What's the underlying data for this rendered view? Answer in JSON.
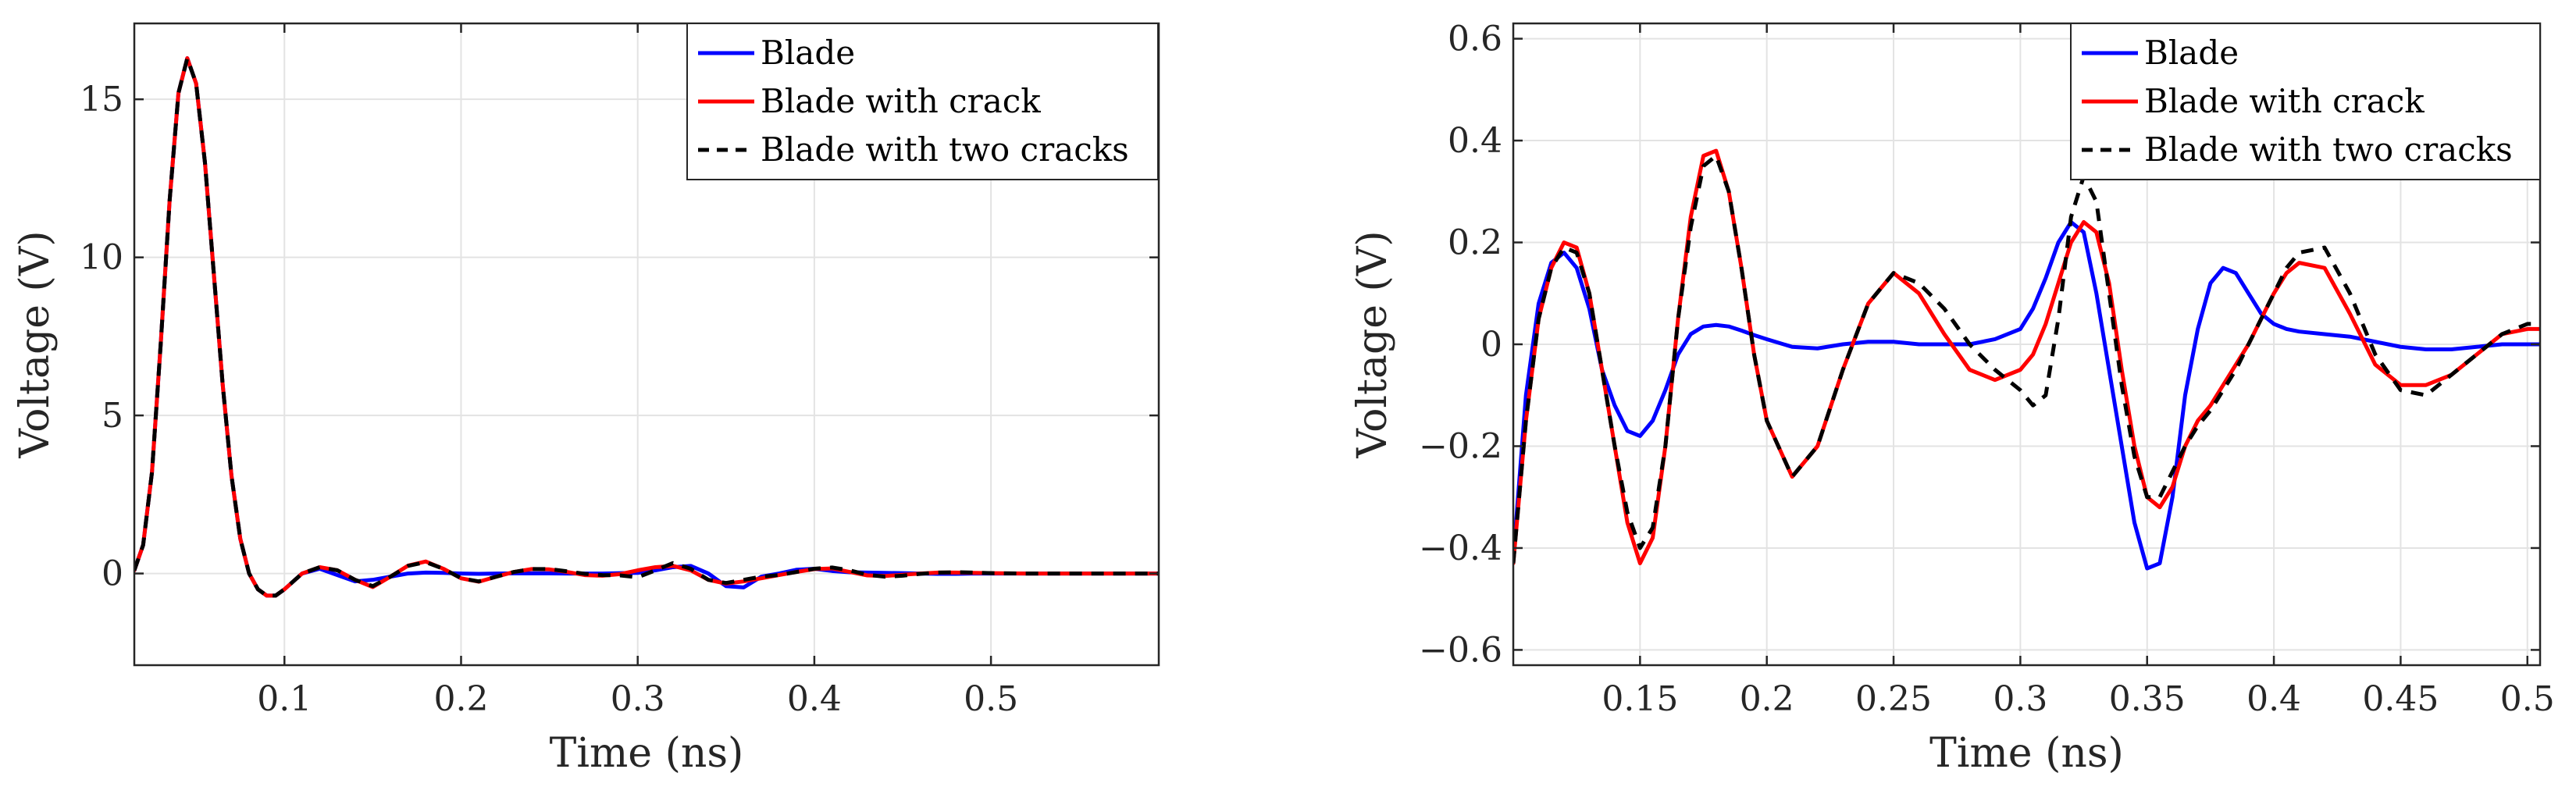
{
  "figure": {
    "panels": 2
  },
  "chart_data": [
    {
      "type": "line",
      "title": "",
      "xlabel": "Time (ns)",
      "ylabel": "Voltage (V)",
      "xlim": [
        0.015,
        0.595
      ],
      "ylim": [
        -2.9,
        17.4
      ],
      "xticks": [
        0.1,
        0.2,
        0.3,
        0.4,
        0.5
      ],
      "xtick_labels": [
        "0.1",
        "0.2",
        "0.3",
        "0.4",
        "0.5"
      ],
      "yticks": [
        0,
        5,
        10,
        15
      ],
      "ytick_labels": [
        "0",
        "5",
        "10",
        "15"
      ],
      "grid": true,
      "legend_position": "top-right",
      "series": [
        {
          "name": "Blade",
          "color": "#0000ff",
          "style": "solid",
          "x": [
            0.015,
            0.02,
            0.025,
            0.03,
            0.035,
            0.04,
            0.045,
            0.05,
            0.055,
            0.06,
            0.065,
            0.07,
            0.075,
            0.08,
            0.085,
            0.09,
            0.095,
            0.1,
            0.11,
            0.12,
            0.13,
            0.14,
            0.15,
            0.16,
            0.17,
            0.18,
            0.19,
            0.2,
            0.21,
            0.22,
            0.23,
            0.24,
            0.25,
            0.26,
            0.27,
            0.28,
            0.29,
            0.3,
            0.31,
            0.32,
            0.33,
            0.34,
            0.35,
            0.36,
            0.37,
            0.38,
            0.39,
            0.4,
            0.41,
            0.42,
            0.43,
            0.44,
            0.45,
            0.46,
            0.47,
            0.48,
            0.49,
            0.5,
            0.52,
            0.54,
            0.56,
            0.58,
            0.595
          ],
          "y": [
            0.1,
            0.9,
            3.2,
            7.3,
            11.8,
            15.2,
            16.3,
            15.5,
            13.0,
            9.5,
            6.0,
            3.1,
            1.1,
            0.0,
            -0.5,
            -0.7,
            -0.7,
            -0.5,
            0.0,
            0.15,
            -0.05,
            -0.25,
            -0.2,
            -0.1,
            0.0,
            0.03,
            0.02,
            0.0,
            -0.01,
            0.0,
            0.005,
            0.005,
            0.005,
            0.0,
            0.0,
            0.0,
            0.01,
            0.02,
            0.1,
            0.2,
            0.24,
            0.0,
            -0.4,
            -0.44,
            -0.1,
            0.0,
            0.12,
            0.15,
            0.08,
            0.04,
            0.03,
            0.02,
            0.01,
            0.0,
            -0.01,
            -0.01,
            0.0,
            0.0,
            0.0,
            0.0,
            0.0,
            0.0,
            0.0
          ]
        },
        {
          "name": "Blade with crack",
          "color": "#ff0000",
          "style": "solid",
          "x": [
            0.015,
            0.02,
            0.025,
            0.03,
            0.035,
            0.04,
            0.045,
            0.05,
            0.055,
            0.06,
            0.065,
            0.07,
            0.075,
            0.08,
            0.085,
            0.09,
            0.095,
            0.1,
            0.11,
            0.12,
            0.13,
            0.14,
            0.15,
            0.16,
            0.17,
            0.18,
            0.19,
            0.2,
            0.21,
            0.22,
            0.23,
            0.24,
            0.25,
            0.26,
            0.27,
            0.28,
            0.29,
            0.3,
            0.31,
            0.32,
            0.33,
            0.34,
            0.35,
            0.36,
            0.37,
            0.38,
            0.39,
            0.4,
            0.41,
            0.42,
            0.43,
            0.44,
            0.45,
            0.46,
            0.47,
            0.48,
            0.49,
            0.5,
            0.52,
            0.54,
            0.56,
            0.58,
            0.595
          ],
          "y": [
            0.1,
            0.9,
            3.2,
            7.3,
            11.8,
            15.2,
            16.3,
            15.5,
            13.0,
            9.5,
            6.0,
            3.1,
            1.1,
            0.0,
            -0.5,
            -0.7,
            -0.7,
            -0.5,
            0.0,
            0.2,
            0.1,
            -0.2,
            -0.43,
            -0.1,
            0.25,
            0.38,
            0.15,
            -0.15,
            -0.26,
            -0.1,
            0.05,
            0.14,
            0.13,
            0.05,
            -0.05,
            -0.07,
            -0.02,
            0.1,
            0.2,
            0.24,
            0.1,
            -0.2,
            -0.32,
            -0.25,
            -0.15,
            -0.05,
            0.05,
            0.14,
            0.16,
            0.05,
            -0.06,
            -0.08,
            -0.04,
            0.0,
            0.03,
            0.03,
            0.02,
            0.01,
            0.0,
            0.0,
            0.0,
            0.0,
            0.0
          ]
        },
        {
          "name": "Blade with two cracks",
          "color": "#000000",
          "style": "dashed",
          "x": [
            0.015,
            0.02,
            0.025,
            0.03,
            0.035,
            0.04,
            0.045,
            0.05,
            0.055,
            0.06,
            0.065,
            0.07,
            0.075,
            0.08,
            0.085,
            0.09,
            0.095,
            0.1,
            0.11,
            0.12,
            0.13,
            0.14,
            0.15,
            0.16,
            0.17,
            0.18,
            0.19,
            0.2,
            0.21,
            0.22,
            0.23,
            0.24,
            0.25,
            0.26,
            0.27,
            0.28,
            0.29,
            0.3,
            0.31,
            0.32,
            0.33,
            0.34,
            0.35,
            0.36,
            0.37,
            0.38,
            0.39,
            0.4,
            0.41,
            0.42,
            0.43,
            0.44,
            0.45,
            0.46,
            0.47,
            0.48,
            0.49,
            0.5,
            0.52,
            0.54,
            0.56,
            0.58,
            0.595
          ],
          "y": [
            0.1,
            0.9,
            3.2,
            7.3,
            11.8,
            15.2,
            16.3,
            15.5,
            13.0,
            9.5,
            6.0,
            3.1,
            1.1,
            0.0,
            -0.5,
            -0.7,
            -0.7,
            -0.5,
            0.0,
            0.2,
            0.1,
            -0.2,
            -0.4,
            -0.1,
            0.24,
            0.36,
            0.15,
            -0.15,
            -0.25,
            -0.1,
            0.05,
            0.14,
            0.14,
            0.07,
            -0.01,
            -0.05,
            -0.06,
            -0.12,
            0.1,
            0.33,
            0.15,
            -0.2,
            -0.3,
            -0.2,
            -0.1,
            -0.05,
            0.05,
            0.15,
            0.19,
            0.1,
            -0.04,
            -0.1,
            -0.07,
            -0.01,
            0.03,
            0.04,
            0.03,
            0.01,
            0.0,
            0.0,
            0.0,
            0.0,
            0.0
          ]
        }
      ]
    },
    {
      "type": "line",
      "title": "",
      "xlabel": "Time (ns)",
      "ylabel": "Voltage (V)",
      "xlim": [
        0.1,
        0.505
      ],
      "ylim": [
        -0.63,
        0.63
      ],
      "xticks": [
        0.15,
        0.2,
        0.25,
        0.3,
        0.35,
        0.4,
        0.45,
        0.5
      ],
      "xtick_labels": [
        "0.15",
        "0.2",
        "0.25",
        "0.3",
        "0.35",
        "0.4",
        "0.45",
        "0.5"
      ],
      "yticks": [
        -0.6,
        -0.4,
        -0.2,
        0,
        0.2,
        0.4,
        0.6
      ],
      "ytick_labels": [
        "−0.6",
        "−0.4",
        "−0.2",
        "0",
        "0.2",
        "0.4",
        "0.6"
      ],
      "grid": true,
      "legend_position": "top-right",
      "series": [
        {
          "name": "Blade",
          "color": "#0000ff",
          "style": "solid",
          "x": [
            0.1,
            0.105,
            0.11,
            0.115,
            0.12,
            0.125,
            0.13,
            0.135,
            0.14,
            0.145,
            0.15,
            0.155,
            0.16,
            0.165,
            0.17,
            0.175,
            0.18,
            0.185,
            0.19,
            0.195,
            0.2,
            0.21,
            0.22,
            0.23,
            0.24,
            0.25,
            0.26,
            0.27,
            0.28,
            0.29,
            0.3,
            0.305,
            0.31,
            0.315,
            0.32,
            0.325,
            0.33,
            0.335,
            0.34,
            0.345,
            0.35,
            0.355,
            0.36,
            0.365,
            0.37,
            0.375,
            0.38,
            0.385,
            0.39,
            0.395,
            0.4,
            0.405,
            0.41,
            0.42,
            0.43,
            0.44,
            0.45,
            0.46,
            0.47,
            0.48,
            0.49,
            0.5,
            0.505
          ],
          "y": [
            -0.42,
            -0.1,
            0.08,
            0.16,
            0.18,
            0.15,
            0.07,
            -0.05,
            -0.12,
            -0.17,
            -0.18,
            -0.15,
            -0.09,
            -0.02,
            0.02,
            0.035,
            0.038,
            0.035,
            0.027,
            0.018,
            0.01,
            -0.005,
            -0.008,
            0.0,
            0.005,
            0.005,
            0.0,
            0.0,
            0.0,
            0.01,
            0.03,
            0.07,
            0.13,
            0.2,
            0.24,
            0.22,
            0.1,
            -0.05,
            -0.2,
            -0.35,
            -0.44,
            -0.43,
            -0.3,
            -0.1,
            0.03,
            0.12,
            0.15,
            0.14,
            0.1,
            0.06,
            0.04,
            0.03,
            0.025,
            0.02,
            0.015,
            0.005,
            -0.005,
            -0.01,
            -0.01,
            -0.005,
            0.0,
            0.0,
            0.0
          ]
        },
        {
          "name": "Blade with crack",
          "color": "#ff0000",
          "style": "solid",
          "x": [
            0.1,
            0.105,
            0.11,
            0.115,
            0.12,
            0.125,
            0.13,
            0.135,
            0.14,
            0.145,
            0.15,
            0.155,
            0.16,
            0.165,
            0.17,
            0.175,
            0.18,
            0.185,
            0.19,
            0.195,
            0.2,
            0.21,
            0.22,
            0.23,
            0.24,
            0.25,
            0.26,
            0.27,
            0.28,
            0.29,
            0.3,
            0.305,
            0.31,
            0.315,
            0.32,
            0.325,
            0.33,
            0.335,
            0.34,
            0.345,
            0.35,
            0.355,
            0.36,
            0.365,
            0.37,
            0.375,
            0.38,
            0.385,
            0.39,
            0.395,
            0.4,
            0.405,
            0.41,
            0.42,
            0.43,
            0.44,
            0.45,
            0.46,
            0.47,
            0.48,
            0.49,
            0.5,
            0.505
          ],
          "y": [
            -0.43,
            -0.15,
            0.05,
            0.15,
            0.2,
            0.19,
            0.1,
            -0.05,
            -0.2,
            -0.35,
            -0.43,
            -0.38,
            -0.2,
            0.05,
            0.25,
            0.37,
            0.38,
            0.3,
            0.15,
            -0.02,
            -0.15,
            -0.26,
            -0.2,
            -0.05,
            0.08,
            0.14,
            0.1,
            0.02,
            -0.05,
            -0.07,
            -0.05,
            -0.02,
            0.04,
            0.12,
            0.2,
            0.24,
            0.22,
            0.12,
            -0.05,
            -0.2,
            -0.3,
            -0.32,
            -0.28,
            -0.2,
            -0.15,
            -0.12,
            -0.08,
            -0.04,
            0.0,
            0.05,
            0.1,
            0.14,
            0.16,
            0.15,
            0.06,
            -0.04,
            -0.08,
            -0.08,
            -0.06,
            -0.02,
            0.02,
            0.03,
            0.03
          ]
        },
        {
          "name": "Blade with two cracks",
          "color": "#000000",
          "style": "dashed",
          "x": [
            0.1,
            0.105,
            0.11,
            0.115,
            0.12,
            0.125,
            0.13,
            0.135,
            0.14,
            0.145,
            0.15,
            0.155,
            0.16,
            0.165,
            0.17,
            0.175,
            0.18,
            0.185,
            0.19,
            0.195,
            0.2,
            0.21,
            0.22,
            0.23,
            0.24,
            0.25,
            0.26,
            0.27,
            0.28,
            0.29,
            0.3,
            0.305,
            0.31,
            0.315,
            0.32,
            0.325,
            0.33,
            0.335,
            0.34,
            0.345,
            0.35,
            0.355,
            0.36,
            0.365,
            0.37,
            0.375,
            0.38,
            0.385,
            0.39,
            0.395,
            0.4,
            0.405,
            0.41,
            0.42,
            0.43,
            0.44,
            0.45,
            0.46,
            0.47,
            0.48,
            0.49,
            0.5,
            0.505
          ],
          "y": [
            -0.43,
            -0.15,
            0.05,
            0.15,
            0.19,
            0.18,
            0.1,
            -0.05,
            -0.2,
            -0.33,
            -0.4,
            -0.36,
            -0.2,
            0.05,
            0.23,
            0.35,
            0.37,
            0.3,
            0.15,
            -0.02,
            -0.15,
            -0.26,
            -0.2,
            -0.05,
            0.08,
            0.14,
            0.12,
            0.07,
            0.0,
            -0.05,
            -0.09,
            -0.12,
            -0.1,
            0.05,
            0.25,
            0.33,
            0.28,
            0.1,
            -0.08,
            -0.22,
            -0.3,
            -0.3,
            -0.25,
            -0.2,
            -0.16,
            -0.13,
            -0.09,
            -0.05,
            0.0,
            0.05,
            0.1,
            0.15,
            0.18,
            0.19,
            0.1,
            -0.02,
            -0.09,
            -0.1,
            -0.06,
            -0.02,
            0.02,
            0.04,
            0.04
          ]
        }
      ]
    }
  ]
}
